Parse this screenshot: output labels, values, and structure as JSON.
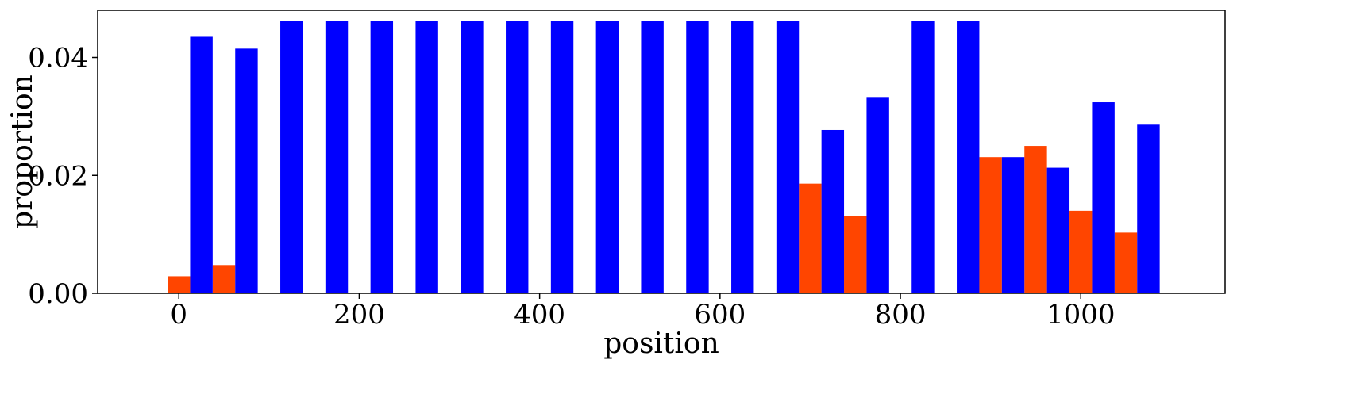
{
  "chart_data": {
    "type": "bar",
    "xlabel": "position",
    "ylabel": "proportion",
    "xlim": [
      -90,
      1160
    ],
    "ylim": [
      0,
      0.048
    ],
    "grid": false,
    "legend": "none",
    "bin_width": 50,
    "x_ticks": [
      {
        "value": 0,
        "label": "0"
      },
      {
        "value": 200,
        "label": "200"
      },
      {
        "value": 400,
        "label": "400"
      },
      {
        "value": 600,
        "label": "600"
      },
      {
        "value": 800,
        "label": "800"
      },
      {
        "value": 1000,
        "label": "1000"
      }
    ],
    "y_ticks": [
      {
        "value": 0,
        "label": "0.00"
      },
      {
        "value": 0.02,
        "label": "0.02"
      },
      {
        "value": 0.04,
        "label": "0.04"
      }
    ],
    "series": [
      {
        "color": "#ff4500",
        "x": [
          0,
          50,
          700,
          750,
          900,
          950,
          1000,
          1050
        ],
        "values": [
          0.0029,
          0.0048,
          0.0186,
          0.0131,
          0.0231,
          0.025,
          0.014,
          0.0103
        ]
      },
      {
        "color": "#0000ff",
        "x": [
          25,
          75,
          125,
          175,
          225,
          275,
          325,
          375,
          425,
          475,
          525,
          575,
          625,
          675,
          725,
          775,
          825,
          875,
          925,
          975,
          1025,
          1075
        ],
        "values": [
          0.0435,
          0.0415,
          0.0462,
          0.0462,
          0.0462,
          0.0462,
          0.0462,
          0.0462,
          0.0462,
          0.0462,
          0.0462,
          0.0462,
          0.0462,
          0.0462,
          0.0277,
          0.0333,
          0.0462,
          0.0462,
          0.0231,
          0.0213,
          0.0324,
          0.0286
        ]
      }
    ]
  }
}
